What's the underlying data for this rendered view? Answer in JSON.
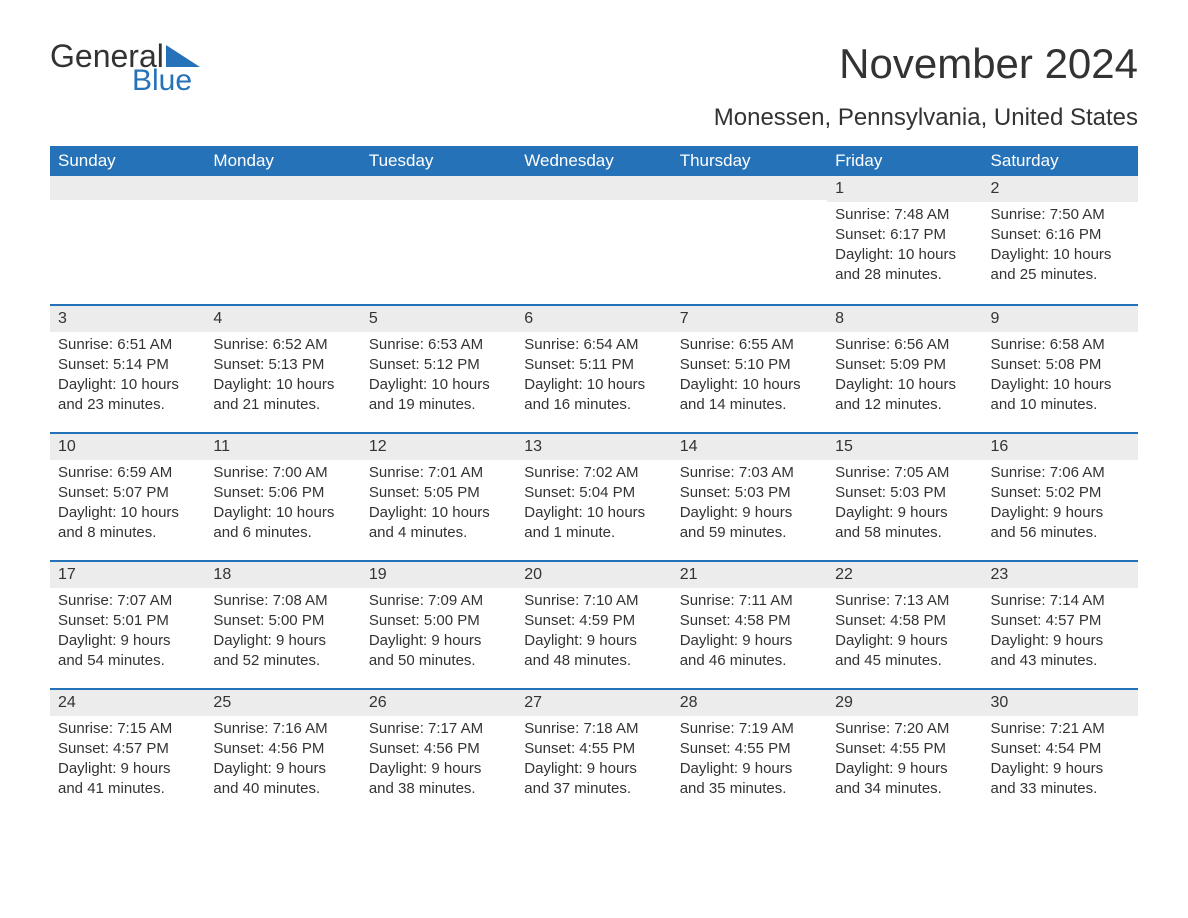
{
  "logo": {
    "word1": "General",
    "word2": "Blue",
    "tri_color": "#2672b8"
  },
  "title": "November 2024",
  "subtitle": "Monessen, Pennsylvania, United States",
  "colors": {
    "header_bg": "#2672b8",
    "header_text": "#ffffff",
    "daynum_bg": "#ececec",
    "text": "#333333",
    "row_border": "#2672b8",
    "page_bg": "#ffffff"
  },
  "weekdays": [
    "Sunday",
    "Monday",
    "Tuesday",
    "Wednesday",
    "Thursday",
    "Friday",
    "Saturday"
  ],
  "weeks": [
    [
      {
        "day": "",
        "lines": []
      },
      {
        "day": "",
        "lines": []
      },
      {
        "day": "",
        "lines": []
      },
      {
        "day": "",
        "lines": []
      },
      {
        "day": "",
        "lines": []
      },
      {
        "day": "1",
        "lines": [
          "Sunrise: 7:48 AM",
          "Sunset: 6:17 PM",
          "Daylight: 10 hours",
          "and 28 minutes."
        ]
      },
      {
        "day": "2",
        "lines": [
          "Sunrise: 7:50 AM",
          "Sunset: 6:16 PM",
          "Daylight: 10 hours",
          "and 25 minutes."
        ]
      }
    ],
    [
      {
        "day": "3",
        "lines": [
          "Sunrise: 6:51 AM",
          "Sunset: 5:14 PM",
          "Daylight: 10 hours",
          "and 23 minutes."
        ]
      },
      {
        "day": "4",
        "lines": [
          "Sunrise: 6:52 AM",
          "Sunset: 5:13 PM",
          "Daylight: 10 hours",
          "and 21 minutes."
        ]
      },
      {
        "day": "5",
        "lines": [
          "Sunrise: 6:53 AM",
          "Sunset: 5:12 PM",
          "Daylight: 10 hours",
          "and 19 minutes."
        ]
      },
      {
        "day": "6",
        "lines": [
          "Sunrise: 6:54 AM",
          "Sunset: 5:11 PM",
          "Daylight: 10 hours",
          "and 16 minutes."
        ]
      },
      {
        "day": "7",
        "lines": [
          "Sunrise: 6:55 AM",
          "Sunset: 5:10 PM",
          "Daylight: 10 hours",
          "and 14 minutes."
        ]
      },
      {
        "day": "8",
        "lines": [
          "Sunrise: 6:56 AM",
          "Sunset: 5:09 PM",
          "Daylight: 10 hours",
          "and 12 minutes."
        ]
      },
      {
        "day": "9",
        "lines": [
          "Sunrise: 6:58 AM",
          "Sunset: 5:08 PM",
          "Daylight: 10 hours",
          "and 10 minutes."
        ]
      }
    ],
    [
      {
        "day": "10",
        "lines": [
          "Sunrise: 6:59 AM",
          "Sunset: 5:07 PM",
          "Daylight: 10 hours",
          "and 8 minutes."
        ]
      },
      {
        "day": "11",
        "lines": [
          "Sunrise: 7:00 AM",
          "Sunset: 5:06 PM",
          "Daylight: 10 hours",
          "and 6 minutes."
        ]
      },
      {
        "day": "12",
        "lines": [
          "Sunrise: 7:01 AM",
          "Sunset: 5:05 PM",
          "Daylight: 10 hours",
          "and 4 minutes."
        ]
      },
      {
        "day": "13",
        "lines": [
          "Sunrise: 7:02 AM",
          "Sunset: 5:04 PM",
          "Daylight: 10 hours",
          "and 1 minute."
        ]
      },
      {
        "day": "14",
        "lines": [
          "Sunrise: 7:03 AM",
          "Sunset: 5:03 PM",
          "Daylight: 9 hours",
          "and 59 minutes."
        ]
      },
      {
        "day": "15",
        "lines": [
          "Sunrise: 7:05 AM",
          "Sunset: 5:03 PM",
          "Daylight: 9 hours",
          "and 58 minutes."
        ]
      },
      {
        "day": "16",
        "lines": [
          "Sunrise: 7:06 AM",
          "Sunset: 5:02 PM",
          "Daylight: 9 hours",
          "and 56 minutes."
        ]
      }
    ],
    [
      {
        "day": "17",
        "lines": [
          "Sunrise: 7:07 AM",
          "Sunset: 5:01 PM",
          "Daylight: 9 hours",
          "and 54 minutes."
        ]
      },
      {
        "day": "18",
        "lines": [
          "Sunrise: 7:08 AM",
          "Sunset: 5:00 PM",
          "Daylight: 9 hours",
          "and 52 minutes."
        ]
      },
      {
        "day": "19",
        "lines": [
          "Sunrise: 7:09 AM",
          "Sunset: 5:00 PM",
          "Daylight: 9 hours",
          "and 50 minutes."
        ]
      },
      {
        "day": "20",
        "lines": [
          "Sunrise: 7:10 AM",
          "Sunset: 4:59 PM",
          "Daylight: 9 hours",
          "and 48 minutes."
        ]
      },
      {
        "day": "21",
        "lines": [
          "Sunrise: 7:11 AM",
          "Sunset: 4:58 PM",
          "Daylight: 9 hours",
          "and 46 minutes."
        ]
      },
      {
        "day": "22",
        "lines": [
          "Sunrise: 7:13 AM",
          "Sunset: 4:58 PM",
          "Daylight: 9 hours",
          "and 45 minutes."
        ]
      },
      {
        "day": "23",
        "lines": [
          "Sunrise: 7:14 AM",
          "Sunset: 4:57 PM",
          "Daylight: 9 hours",
          "and 43 minutes."
        ]
      }
    ],
    [
      {
        "day": "24",
        "lines": [
          "Sunrise: 7:15 AM",
          "Sunset: 4:57 PM",
          "Daylight: 9 hours",
          "and 41 minutes."
        ]
      },
      {
        "day": "25",
        "lines": [
          "Sunrise: 7:16 AM",
          "Sunset: 4:56 PM",
          "Daylight: 9 hours",
          "and 40 minutes."
        ]
      },
      {
        "day": "26",
        "lines": [
          "Sunrise: 7:17 AM",
          "Sunset: 4:56 PM",
          "Daylight: 9 hours",
          "and 38 minutes."
        ]
      },
      {
        "day": "27",
        "lines": [
          "Sunrise: 7:18 AM",
          "Sunset: 4:55 PM",
          "Daylight: 9 hours",
          "and 37 minutes."
        ]
      },
      {
        "day": "28",
        "lines": [
          "Sunrise: 7:19 AM",
          "Sunset: 4:55 PM",
          "Daylight: 9 hours",
          "and 35 minutes."
        ]
      },
      {
        "day": "29",
        "lines": [
          "Sunrise: 7:20 AM",
          "Sunset: 4:55 PM",
          "Daylight: 9 hours",
          "and 34 minutes."
        ]
      },
      {
        "day": "30",
        "lines": [
          "Sunrise: 7:21 AM",
          "Sunset: 4:54 PM",
          "Daylight: 9 hours",
          "and 33 minutes."
        ]
      }
    ]
  ]
}
